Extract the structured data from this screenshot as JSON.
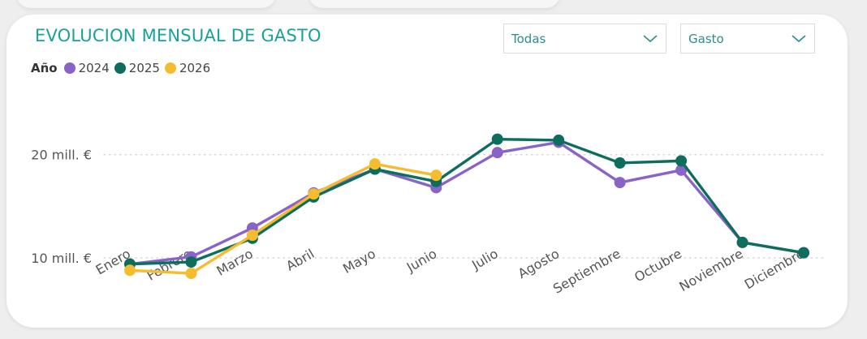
{
  "filters": {
    "category": {
      "value": "Todas"
    },
    "metric": {
      "value": "Gasto"
    }
  },
  "colors": {
    "accent": "#17a398",
    "grid": "#cfcfcf"
  },
  "chart_data": {
    "type": "line",
    "title": "EVOLUCION MENSUAL DE GASTO",
    "legend_title": "Año",
    "legend_placement": "top-left",
    "categories": [
      "Enero",
      "Febrero",
      "Marzo",
      "Abril",
      "Mayo",
      "Junio",
      "Julio",
      "Agosto",
      "Septiembre",
      "Octubre",
      "Noviembre",
      "Diciembre"
    ],
    "series": [
      {
        "name": "2024",
        "color": "#8a63c9",
        "values": [
          9.4,
          10.1,
          12.9,
          16.3,
          18.6,
          16.8,
          20.2,
          21.2,
          17.3,
          18.5,
          11.5,
          10.5
        ]
      },
      {
        "name": "2025",
        "color": "#0e6e5e",
        "values": [
          9.4,
          9.6,
          11.9,
          15.9,
          18.6,
          17.4,
          21.5,
          21.4,
          19.2,
          19.4,
          11.5,
          10.5
        ]
      },
      {
        "name": "2026",
        "color": "#f5bd2e",
        "values": [
          8.8,
          8.5,
          12.2,
          16.2,
          19.1,
          18.0,
          null,
          null,
          null,
          null,
          null,
          null
        ]
      }
    ],
    "y_ticks": [
      {
        "value": 10,
        "label": "10 mill. €"
      },
      {
        "value": 20,
        "label": "20 mill. €"
      }
    ],
    "ylim": [
      4.5,
      26.5
    ],
    "grid": true,
    "xlabel": "",
    "ylabel": ""
  }
}
